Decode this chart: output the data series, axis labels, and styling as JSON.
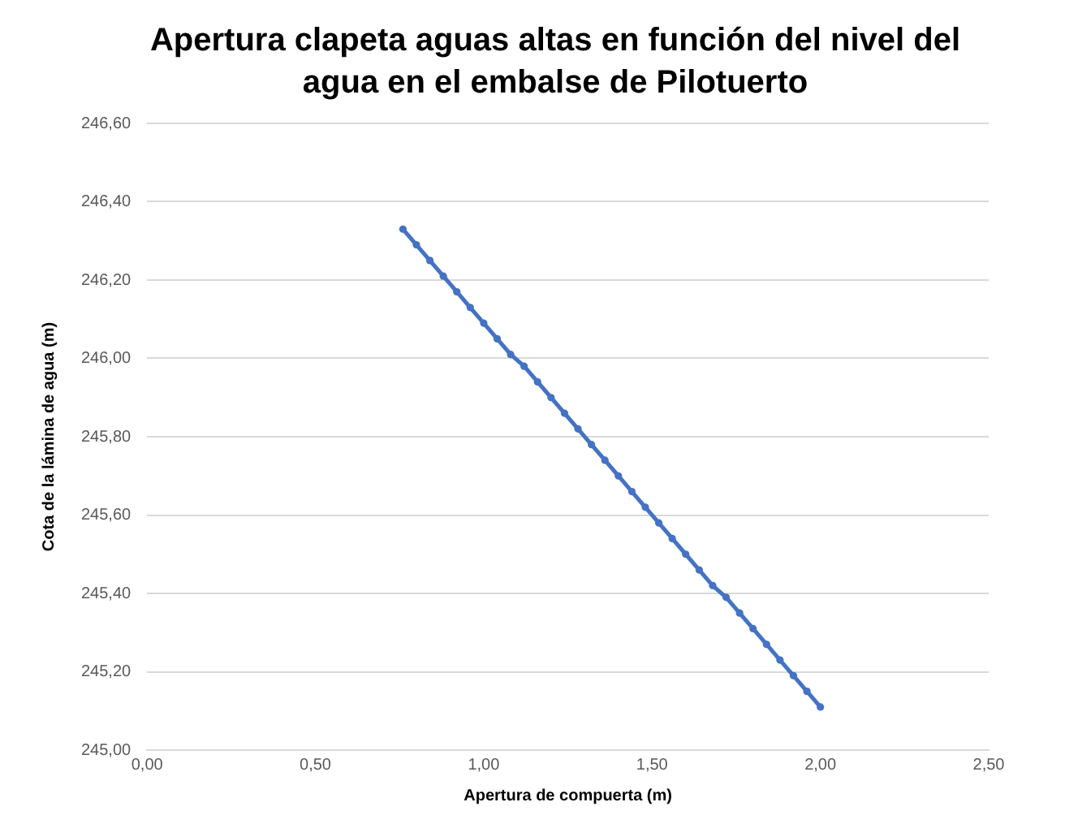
{
  "chart_data": {
    "type": "line",
    "title": "Apertura clapeta aguas altas en función del nivel del agua en el embalse de Pilotuerto",
    "xlabel": "Apertura de compuerta (m)",
    "ylabel": "Cota de la lámina de agua (m)",
    "x": [
      0.76,
      0.8,
      0.84,
      0.88,
      0.92,
      0.96,
      1.0,
      1.04,
      1.08,
      1.12,
      1.16,
      1.2,
      1.24,
      1.28,
      1.32,
      1.36,
      1.4,
      1.44,
      1.48,
      1.52,
      1.56,
      1.6,
      1.64,
      1.68,
      1.72,
      1.76,
      1.8,
      1.84,
      1.88,
      1.92,
      1.96,
      2.0
    ],
    "series": [
      {
        "color": "#4472c4",
        "values": [
          246.33,
          246.29,
          246.25,
          246.21,
          246.17,
          246.13,
          246.09,
          246.05,
          246.01,
          245.98,
          245.94,
          245.9,
          245.86,
          245.82,
          245.78,
          245.74,
          245.7,
          245.66,
          245.62,
          245.58,
          245.54,
          245.5,
          245.46,
          245.42,
          245.39,
          245.35,
          245.31,
          245.27,
          245.23,
          245.19,
          245.15,
          245.11
        ]
      }
    ],
    "xlim": [
      0,
      2.5
    ],
    "xticks": [
      {
        "value": 0,
        "label": "0,00"
      },
      {
        "value": 0.5,
        "label": "0,50"
      },
      {
        "value": 1,
        "label": "1,00"
      },
      {
        "value": 1.5,
        "label": "1,50"
      },
      {
        "value": 2,
        "label": "2,00"
      },
      {
        "value": 2.5,
        "label": "2,50"
      }
    ],
    "ylim": [
      245,
      246.6
    ],
    "yticks": [
      {
        "value": 245,
        "label": "245,00"
      },
      {
        "value": 245.2,
        "label": "245,20"
      },
      {
        "value": 245.4,
        "label": "245,40"
      },
      {
        "value": 245.6,
        "label": "245,60"
      },
      {
        "value": 245.8,
        "label": "245,80"
      },
      {
        "value": 246,
        "label": "246,00"
      },
      {
        "value": 246.2,
        "label": "246,20"
      },
      {
        "value": 246.4,
        "label": "246,40"
      },
      {
        "value": 246.6,
        "label": "246,60"
      }
    ],
    "grid": "y",
    "legend": false,
    "marker": "circle",
    "line_style": "solid"
  }
}
